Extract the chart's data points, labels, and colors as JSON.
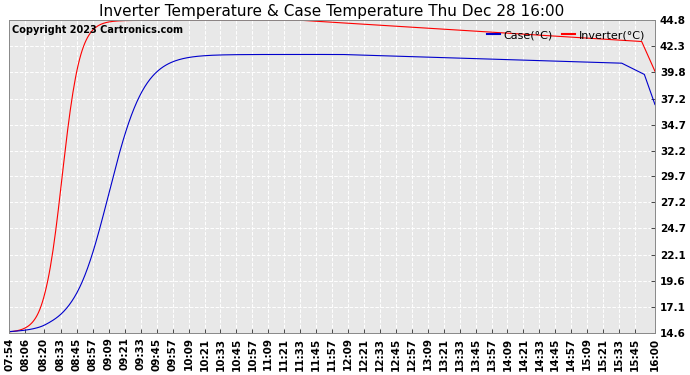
{
  "title": "Inverter Temperature & Case Temperature Thu Dec 28 16:00",
  "copyright": "Copyright 2023 Cartronics.com",
  "ylabel_right_ticks": [
    14.6,
    17.1,
    19.6,
    22.1,
    24.7,
    27.2,
    29.7,
    32.2,
    34.7,
    37.2,
    39.8,
    42.3,
    44.8
  ],
  "ymin": 14.6,
  "ymax": 44.8,
  "background_color": "#ffffff",
  "plot_bg_color": "#e8e8e8",
  "grid_color": "#ffffff",
  "line_color_red": "#ff0000",
  "line_color_blue": "#0000cc",
  "legend_case_label": "Case(°C)",
  "legend_inverter_label": "Inverter(°C)",
  "title_fontsize": 11,
  "copyright_fontsize": 7,
  "tick_fontsize": 7.5,
  "legend_fontsize": 8,
  "x_tick_labels": [
    "07:54",
    "08:06",
    "08:20",
    "08:33",
    "08:45",
    "08:57",
    "09:09",
    "09:21",
    "09:33",
    "09:45",
    "09:57",
    "10:09",
    "10:21",
    "10:33",
    "10:45",
    "10:57",
    "11:09",
    "11:21",
    "11:33",
    "11:45",
    "11:57",
    "12:09",
    "12:21",
    "12:33",
    "12:45",
    "12:57",
    "13:09",
    "13:21",
    "13:33",
    "13:45",
    "13:57",
    "14:09",
    "14:21",
    "14:33",
    "14:45",
    "14:57",
    "15:09",
    "15:21",
    "15:33",
    "15:45",
    "16:00"
  ]
}
